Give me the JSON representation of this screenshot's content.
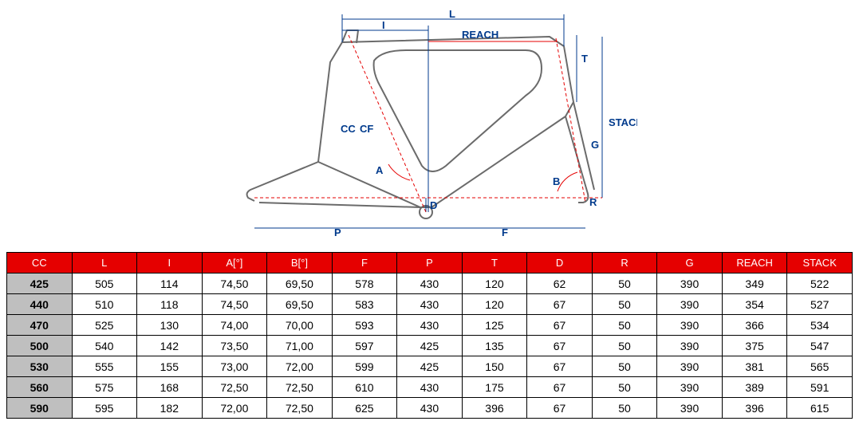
{
  "diagram": {
    "label_color": "#003a8c",
    "frame_stroke": "#6b6b6b",
    "frame_stroke_width": 2,
    "dim_line_color": "#003a8c",
    "dim_line_width": 1,
    "red_line_color": "#e50000",
    "red_line_width": 1,
    "background": "#ffffff",
    "labels": {
      "L": "L",
      "I": "I",
      "REACH": "REACH",
      "T": "T",
      "STACK": "STACK",
      "G": "G",
      "CC": "CC",
      "CF": "CF",
      "A": "A",
      "B": "B",
      "D": "D",
      "P": "P",
      "F": "F",
      "R": "R"
    }
  },
  "table": {
    "header_bg": "#e50000",
    "header_fg": "#ffffff",
    "firstcol_bg": "#bfbfbf",
    "columns": [
      "CC",
      "L",
      "I",
      "A[°]",
      "B[°]",
      "F",
      "P",
      "T",
      "D",
      "R",
      "G",
      "REACH",
      "STACK"
    ],
    "rows": [
      [
        "425",
        "505",
        "114",
        "74,50",
        "69,50",
        "578",
        "430",
        "120",
        "62",
        "50",
        "390",
        "349",
        "522"
      ],
      [
        "440",
        "510",
        "118",
        "74,50",
        "69,50",
        "583",
        "430",
        "120",
        "67",
        "50",
        "390",
        "354",
        "527"
      ],
      [
        "470",
        "525",
        "130",
        "74,00",
        "70,00",
        "593",
        "430",
        "125",
        "67",
        "50",
        "390",
        "366",
        "534"
      ],
      [
        "500",
        "540",
        "142",
        "73,50",
        "71,00",
        "597",
        "425",
        "135",
        "67",
        "50",
        "390",
        "375",
        "547"
      ],
      [
        "530",
        "555",
        "155",
        "73,00",
        "72,00",
        "599",
        "425",
        "150",
        "67",
        "50",
        "390",
        "381",
        "565"
      ],
      [
        "560",
        "575",
        "168",
        "72,50",
        "72,50",
        "610",
        "430",
        "175",
        "67",
        "50",
        "390",
        "389",
        "591"
      ],
      [
        "590",
        "595",
        "182",
        "72,00",
        "72,50",
        "625",
        "430",
        "396",
        "67",
        "50",
        "390",
        "396",
        "615"
      ]
    ],
    "cell_fontsize": 14,
    "header_fontsize": 13
  }
}
